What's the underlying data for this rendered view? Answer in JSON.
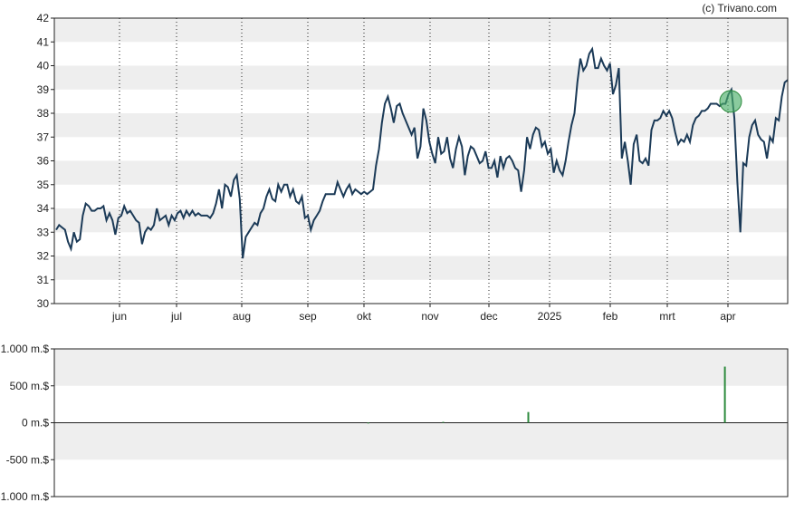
{
  "credit": "(c) Trivano.com",
  "colors": {
    "price_line": "#1b3a57",
    "band": "#eeeeee",
    "volume_bar": "#2e8b3e",
    "marker_fill": "#4caf6a",
    "marker_stroke": "#2e8b3e"
  },
  "chart_data": [
    {
      "type": "line",
      "x_tick_labels": [
        "jun",
        "jul",
        "aug",
        "sep",
        "okt",
        "nov",
        "dec",
        "2025",
        "feb",
        "mrt",
        "apr"
      ],
      "ylim": [
        30,
        42
      ],
      "y_ticks": [
        30,
        31,
        32,
        33,
        34,
        35,
        36,
        37,
        38,
        39,
        40,
        41,
        42
      ],
      "grid": "alternating horizontal bands, dotted vertical lines at month ticks",
      "series": [
        {
          "values": [
            33.1,
            33.3,
            33.2,
            33.1,
            32.6,
            32.3,
            33.0,
            32.6,
            32.7,
            33.7,
            34.2,
            34.1,
            33.9,
            33.9,
            34.0,
            34.0,
            34.1,
            33.5,
            33.8,
            33.5,
            32.9,
            33.6,
            33.7,
            34.1,
            33.8,
            33.9,
            33.7,
            33.5,
            33.4,
            32.5,
            33.0,
            33.2,
            33.1,
            33.3,
            34.0,
            33.5,
            33.6,
            33.7,
            33.3,
            33.7,
            33.5,
            33.8,
            33.9,
            33.6,
            33.9,
            33.7,
            33.9,
            33.7,
            33.8,
            33.7,
            33.7,
            33.7,
            33.6,
            33.8,
            34.2,
            34.8,
            34.0,
            35.0,
            34.9,
            34.5,
            35.2,
            35.4,
            34.4,
            31.9,
            32.8,
            33.0,
            33.2,
            33.4,
            33.3,
            33.8,
            34.0,
            34.5,
            34.8,
            34.4,
            34.3,
            35.0,
            34.7,
            35.0,
            35.0,
            34.5,
            34.8,
            34.3,
            34.2,
            34.5,
            33.6,
            33.7,
            33.1,
            33.5,
            33.7,
            33.9,
            34.3,
            34.6,
            34.6,
            34.6,
            34.6,
            35.1,
            34.8,
            34.5,
            34.8,
            35.0,
            34.6,
            34.8,
            34.7,
            34.6,
            34.7,
            34.6,
            34.7,
            34.8,
            35.8,
            36.5,
            37.6,
            38.4,
            38.7,
            38.2,
            37.6,
            38.3,
            38.4,
            38.0,
            37.7,
            37.4,
            37.1,
            37.4,
            36.1,
            36.6,
            38.2,
            37.7,
            36.8,
            36.3,
            35.9,
            37.0,
            36.3,
            36.4,
            37.0,
            36.1,
            35.7,
            36.5,
            37.0,
            36.6,
            35.4,
            36.2,
            36.6,
            36.5,
            36.2,
            35.9,
            36.0,
            36.4,
            35.7,
            35.7,
            36.0,
            35.3,
            36.2,
            35.7,
            36.1,
            36.2,
            36.0,
            35.7,
            35.6,
            34.7,
            35.6,
            37.0,
            36.5,
            37.1,
            37.4,
            37.3,
            36.6,
            36.8,
            36.3,
            36.5,
            35.5,
            36.0,
            35.6,
            35.4,
            36.0,
            36.8,
            37.5,
            38.0,
            39.3,
            40.3,
            39.8,
            40.0,
            40.5,
            40.7,
            39.9,
            39.9,
            40.3,
            40.0,
            39.8,
            40.1,
            38.8,
            39.2,
            39.9,
            36.1,
            36.8,
            36.0,
            35.0,
            36.7,
            37.1,
            36.0,
            35.9,
            36.1,
            35.8,
            37.3,
            37.7,
            37.7,
            37.8,
            38.1,
            37.9,
            38.1,
            37.8,
            37.2,
            36.7,
            36.9,
            36.8,
            37.1,
            36.8,
            37.5,
            37.8,
            37.9,
            38.1,
            38.1,
            38.2,
            38.4,
            38.4,
            38.4,
            38.3,
            38.4,
            38.4,
            38.8,
            39.0,
            37.8,
            35.1,
            33.0,
            35.9,
            35.8,
            37.0,
            37.5,
            37.7,
            37.1,
            36.9,
            36.8,
            36.1,
            37.0,
            36.8,
            37.8,
            37.7,
            38.7,
            39.3,
            39.4
          ]
        }
      ],
      "annotations": [
        "circle marker at the 3rd-to-last month tick area near 38.5"
      ]
    },
    {
      "type": "bar",
      "title": "",
      "ylim": [
        -1000,
        1000
      ],
      "y_tick_labels": [
        "1.000 m.$",
        "500 m.$",
        "0 m.$",
        "-500 m.$",
        "-1.000 m.$"
      ],
      "y_ticks": [
        1000,
        500,
        0,
        -500,
        -1000
      ],
      "bars": [
        {
          "index": 154,
          "value": 2
        },
        {
          "index": 191,
          "value": 12
        },
        {
          "index": 233,
          "value": 145
        },
        {
          "index": 330,
          "value": 760
        }
      ],
      "x_points": 362
    }
  ]
}
